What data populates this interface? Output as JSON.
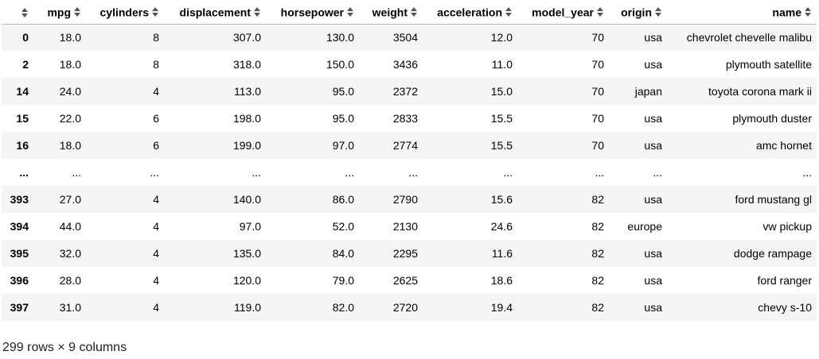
{
  "table": {
    "columns": [
      "mpg",
      "cylinders",
      "displacement",
      "horsepower",
      "weight",
      "acceleration",
      "model_year",
      "origin",
      "name"
    ],
    "rows": [
      {
        "index": "0",
        "cells": [
          "18.0",
          "8",
          "307.0",
          "130.0",
          "3504",
          "12.0",
          "70",
          "usa",
          "chevrolet chevelle malibu"
        ]
      },
      {
        "index": "2",
        "cells": [
          "18.0",
          "8",
          "318.0",
          "150.0",
          "3436",
          "11.0",
          "70",
          "usa",
          "plymouth satellite"
        ]
      },
      {
        "index": "14",
        "cells": [
          "24.0",
          "4",
          "113.0",
          "95.0",
          "2372",
          "15.0",
          "70",
          "japan",
          "toyota corona mark ii"
        ]
      },
      {
        "index": "15",
        "cells": [
          "22.0",
          "6",
          "198.0",
          "95.0",
          "2833",
          "15.5",
          "70",
          "usa",
          "plymouth duster"
        ]
      },
      {
        "index": "16",
        "cells": [
          "18.0",
          "6",
          "199.0",
          "97.0",
          "2774",
          "15.5",
          "70",
          "usa",
          "amc hornet"
        ]
      },
      {
        "index": "...",
        "cells": [
          "...",
          "...",
          "...",
          "...",
          "...",
          "...",
          "...",
          "...",
          "..."
        ]
      },
      {
        "index": "393",
        "cells": [
          "27.0",
          "4",
          "140.0",
          "86.0",
          "2790",
          "15.6",
          "82",
          "usa",
          "ford mustang gl"
        ]
      },
      {
        "index": "394",
        "cells": [
          "44.0",
          "4",
          "97.0",
          "52.0",
          "2130",
          "24.6",
          "82",
          "europe",
          "vw pickup"
        ]
      },
      {
        "index": "395",
        "cells": [
          "32.0",
          "4",
          "135.0",
          "84.0",
          "2295",
          "11.6",
          "82",
          "usa",
          "dodge rampage"
        ]
      },
      {
        "index": "396",
        "cells": [
          "28.0",
          "4",
          "120.0",
          "79.0",
          "2625",
          "18.6",
          "82",
          "usa",
          "ford ranger"
        ]
      },
      {
        "index": "397",
        "cells": [
          "31.0",
          "4",
          "119.0",
          "82.0",
          "2720",
          "19.4",
          "82",
          "usa",
          "chevy s-10"
        ]
      }
    ]
  },
  "footer": {
    "shape_text": "299 rows × 9 columns"
  },
  "icons": {
    "sort": "sort-arrows-icon"
  }
}
